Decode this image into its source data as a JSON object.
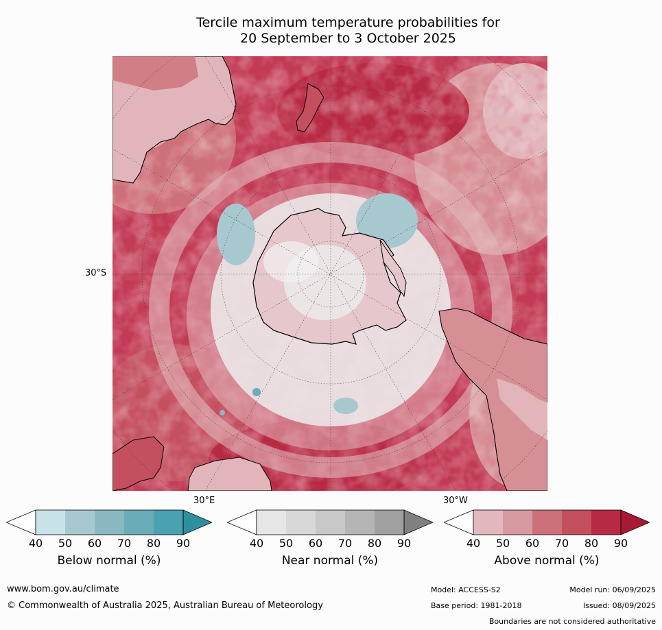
{
  "title_line1": "Tercile maximum temperature probabilities for",
  "title_line2": "20 September to 3 October 2025",
  "map": {
    "lat_label": "30°S",
    "lon_label_east": "30°E",
    "lon_label_west": "30°W",
    "colors": {
      "ocean_warm_high": "#b82a44",
      "warm_80": "#c4505f",
      "warm_70": "#cd7079",
      "warm_60": "#d68f95",
      "warm_50": "#e1b5b9",
      "near_normal": "#e4e4e4",
      "below_normal": "#a8c8cf",
      "coastline": "#000000"
    }
  },
  "legends": [
    {
      "title": "Below normal (%)",
      "ticks": [
        "40",
        "50",
        "60",
        "70",
        "80",
        "90"
      ],
      "colors": [
        "#ffffff",
        "#c9e2e8",
        "#a8c8cf",
        "#8ab8c0",
        "#6aacb8",
        "#4aa2b0",
        "#2d8fa0"
      ]
    },
    {
      "title": "Near normal (%)",
      "ticks": [
        "40",
        "50",
        "60",
        "70",
        "80",
        "90"
      ],
      "colors": [
        "#ffffff",
        "#e6e6e6",
        "#d8d8d8",
        "#c8c8c8",
        "#b5b5b5",
        "#a0a0a0",
        "#808080"
      ]
    },
    {
      "title": "Above normal (%)",
      "ticks": [
        "40",
        "50",
        "60",
        "70",
        "80",
        "90"
      ],
      "colors": [
        "#ffffff",
        "#e2b8bd",
        "#d89aa1",
        "#cd7079",
        "#c4505f",
        "#b82a44",
        "#a81a33"
      ]
    }
  ],
  "footer": {
    "website": "www.bom.gov.au/climate",
    "copyright": "© Commonwealth of Australia 2025, Australian Bureau of Meteorology",
    "model": "Model: ACCESS-S2",
    "base_period": "Base period: 1981-2018",
    "model_run": "Model run: 06/09/2025",
    "issued": "Issued: 08/09/2025",
    "disclaimer": "Boundaries are not considered authoritative"
  }
}
